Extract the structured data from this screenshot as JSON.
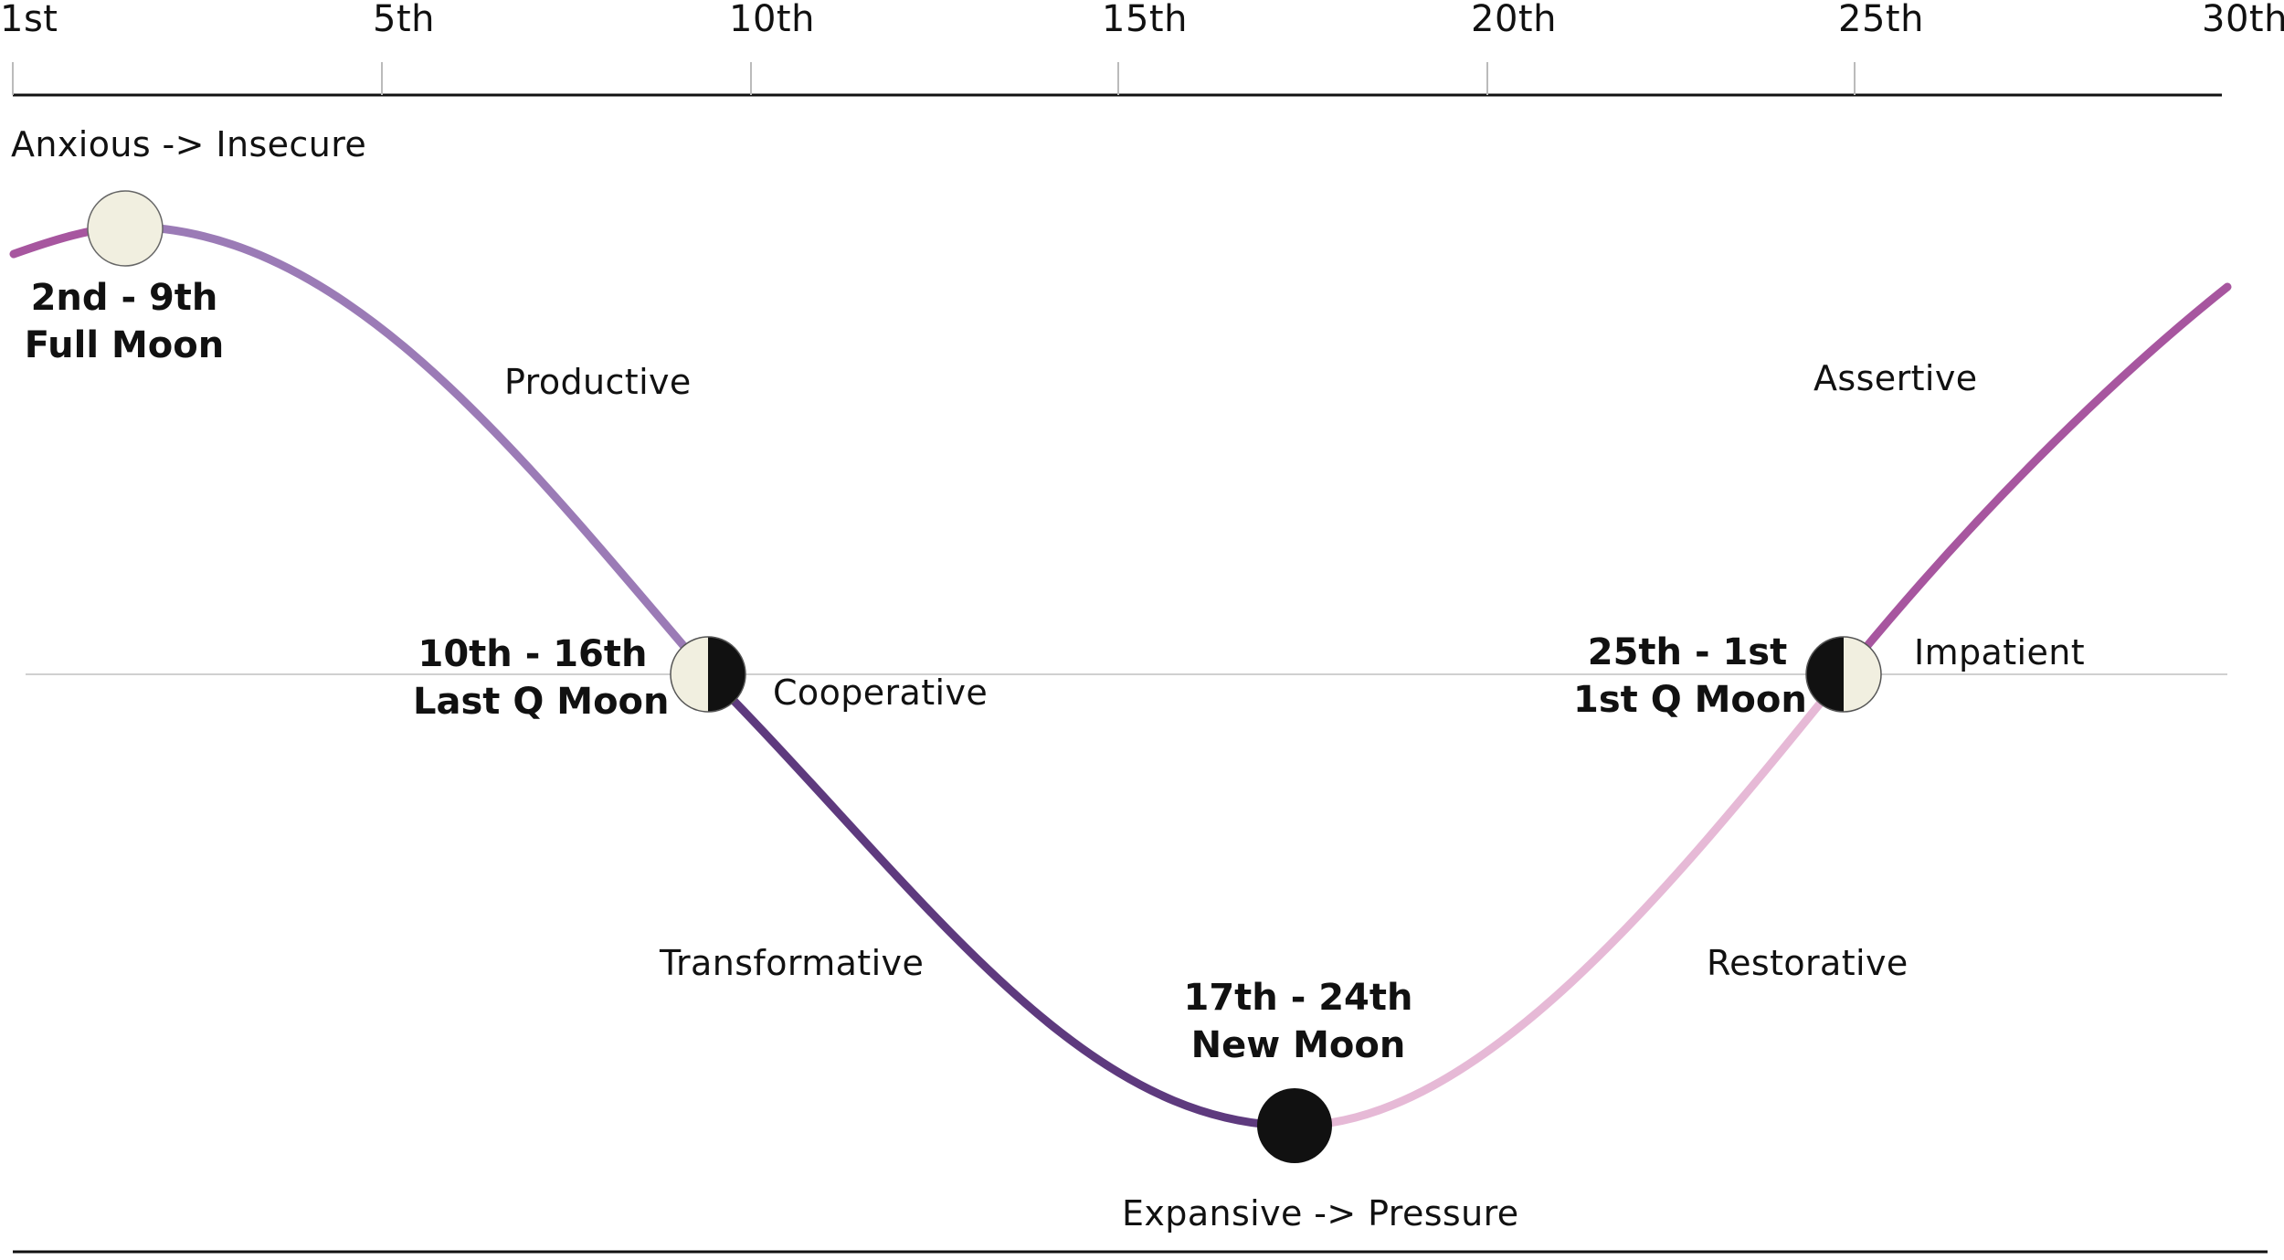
{
  "axis": {
    "ticks": [
      "1st",
      "5th",
      "10th",
      "15th",
      "20th",
      "25th",
      "30th"
    ]
  },
  "labels": {
    "anxious": "Anxious -> Insecure",
    "productive": "Productive",
    "cooperative": "Cooperative",
    "transformative": "Transformative",
    "expansive": "Expansive -> Pressure",
    "restorative": "Restorative",
    "impatient": "Impatient",
    "assertive": "Assertive"
  },
  "phases": {
    "full": {
      "range": "2nd - 9th",
      "name": "Full Moon"
    },
    "last_q": {
      "range": "10th - 16th",
      "name": "Last Q Moon"
    },
    "new": {
      "range": "17th - 24th",
      "name": "New Moon"
    },
    "first_q": {
      "range": "25th - 1st",
      "name": "1st Q Moon"
    }
  },
  "colors": {
    "full_to_lastq": "#9b7bb6",
    "lastq_to_new": "#5e3a7e",
    "new_to_firstq": "#e6b9d6",
    "firstq_to_end": "#a7569f",
    "start_segment": "#a7569f",
    "moon_light": "#f1efe0",
    "moon_dark": "#111111"
  }
}
